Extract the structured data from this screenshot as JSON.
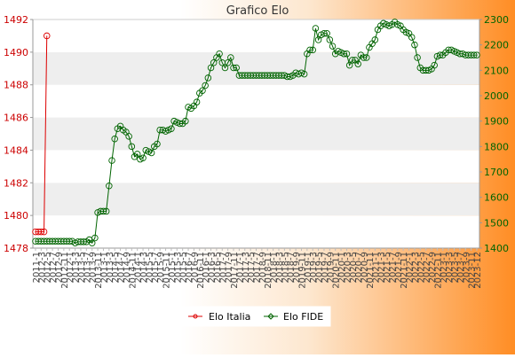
{
  "chart_data": {
    "type": "line",
    "title": "Grafico Elo",
    "xlabel": "",
    "ylabel_left": "",
    "ylabel_right": "",
    "y_left": {
      "range": [
        1478,
        1492
      ],
      "ticks": [
        1478,
        1480,
        1482,
        1484,
        1486,
        1488,
        1490,
        1492
      ]
    },
    "y_right": {
      "range": [
        1400,
        2300
      ],
      "ticks": [
        1400,
        1500,
        1600,
        1700,
        1800,
        1900,
        2000,
        2100,
        2200,
        2300
      ]
    },
    "grid": "horizontal alternating bands",
    "legend_position": "bottom-center",
    "x_tick_labels_note": "dense rotated date labels, illegible; first reads 2011-1, last reads 2023-12",
    "x_tick_first": "2011-1",
    "x_tick_last": "2023-12",
    "series": [
      {
        "name": "Elo Italia",
        "axis": "left",
        "color": "#dd0000",
        "marker": "circle",
        "points": [
          [
            0,
            1479
          ],
          [
            1,
            1479
          ],
          [
            2,
            1479
          ],
          [
            3,
            1479
          ],
          [
            4,
            1491
          ]
        ]
      },
      {
        "name": "Elo FIDE",
        "axis": "right",
        "color": "#006400",
        "marker": "diamond",
        "values": [
          1427,
          1427,
          1427,
          1427,
          1427,
          1427,
          1427,
          1427,
          1427,
          1427,
          1427,
          1427,
          1427,
          1427,
          1420,
          1425,
          1425,
          1425,
          1425,
          1433,
          1420,
          1440,
          1540,
          1545,
          1545,
          1545,
          1645,
          1745,
          1830,
          1870,
          1880,
          1865,
          1857,
          1840,
          1800,
          1760,
          1770,
          1750,
          1755,
          1785,
          1780,
          1775,
          1800,
          1810,
          1865,
          1865,
          1860,
          1865,
          1870,
          1900,
          1895,
          1890,
          1890,
          1900,
          1955,
          1950,
          1960,
          1975,
          2010,
          2020,
          2040,
          2070,
          2110,
          2130,
          2150,
          2165,
          2130,
          2110,
          2130,
          2150,
          2110,
          2110,
          2080,
          2080,
          2080,
          2080,
          2080,
          2080,
          2080,
          2080,
          2080,
          2080,
          2080,
          2080,
          2080,
          2080,
          2080,
          2080,
          2080,
          2075,
          2075,
          2080,
          2090,
          2085,
          2090,
          2085,
          2165,
          2180,
          2180,
          2265,
          2220,
          2240,
          2245,
          2245,
          2220,
          2195,
          2165,
          2175,
          2170,
          2165,
          2165,
          2120,
          2140,
          2140,
          2125,
          2160,
          2150,
          2150,
          2190,
          2205,
          2220,
          2260,
          2275,
          2285,
          2280,
          2275,
          2280,
          2290,
          2280,
          2275,
          2260,
          2250,
          2245,
          2230,
          2200,
          2150,
          2110,
          2100,
          2100,
          2100,
          2105,
          2120,
          2155,
          2160,
          2160,
          2170,
          2180,
          2180,
          2175,
          2170,
          2165,
          2165,
          2160,
          2160,
          2160,
          2160,
          2160
        ]
      }
    ]
  }
}
